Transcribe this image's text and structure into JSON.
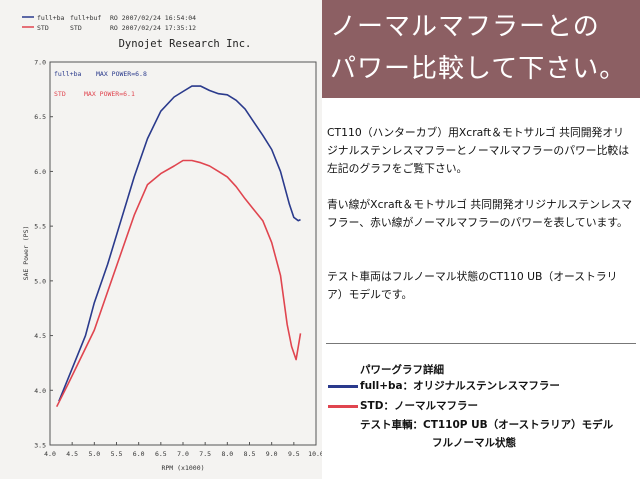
{
  "banner": {
    "line1": "ノーマルマフラーとの",
    "line2": "パワー比較して下さい。"
  },
  "description": {
    "p1": "CT110（ハンターカブ）用Xcraft＆モトサルゴ 共同開発オリジナルステンレスマフラーとノーマルマフラーのパワー比較は左記のグラフをご覧下さい。",
    "p2": "青い線がXcraft＆モトサルゴ 共同開発オリジナルステンレスマフラー、赤い線がノーマルマフラーのパワーを表しています。",
    "p3": "テスト車両はフルノーマル状態のCT110 UB（オーストラリア）モデルです。"
  },
  "legend_block": {
    "title": "パワーグラフ詳細",
    "item_blue": "full+ba：オリジナルステンレスマフラー",
    "item_red": "STD：ノーマルマフラー",
    "test_vehicle_1": "テスト車輌：CT110P UB（オーストラリア）モデル",
    "test_vehicle_2": "フルノーマル状態"
  },
  "chart_header": {
    "row1_a": "full+ba",
    "row1_b": "full+buf",
    "row1_c": "RO  2007/02/24 16:54:04",
    "row2_a": "STD",
    "row2_b": "STD",
    "row2_c": "RO  2007/02/24 17:35:12",
    "company": "Dynojet  Research  Inc."
  },
  "colors": {
    "blue": "#2a3a8c",
    "red": "#e0454f",
    "banner": "#8c5f63"
  },
  "chart_data": {
    "type": "line",
    "title": "Dynojet  Research  Inc.",
    "xlabel": "RPM (x1000)",
    "ylabel": "SAE Power (PS)",
    "xlim": [
      4.0,
      10.0
    ],
    "ylim": [
      3.5,
      7.0
    ],
    "xticks": [
      "4.0",
      "4.5",
      "5.0",
      "5.5",
      "6.0",
      "6.5",
      "7.0",
      "7.5",
      "8.0",
      "8.5",
      "9.0",
      "9.5",
      "10.0"
    ],
    "yticks": [
      "3.5",
      "4.0",
      "4.5",
      "5.0",
      "5.5",
      "6.0",
      "6.5",
      "7.0"
    ],
    "grid": false,
    "annotations": [
      {
        "series": "full+ba",
        "label": "full+ba",
        "text": "MAX POWER=6.8"
      },
      {
        "series": "STD",
        "label": "STD",
        "text": "MAX POWER=6.1"
      }
    ],
    "series": [
      {
        "name": "full+ba",
        "color": "#2a3a8c",
        "x": [
          4.2,
          4.5,
          4.8,
          5.0,
          5.3,
          5.6,
          5.9,
          6.2,
          6.5,
          6.8,
          7.0,
          7.2,
          7.4,
          7.6,
          7.8,
          8.0,
          8.2,
          8.4,
          8.6,
          8.8,
          9.0,
          9.2,
          9.4,
          9.5,
          9.6,
          9.65
        ],
        "y": [
          3.9,
          4.2,
          4.5,
          4.8,
          5.15,
          5.55,
          5.95,
          6.3,
          6.55,
          6.68,
          6.73,
          6.78,
          6.78,
          6.74,
          6.71,
          6.7,
          6.65,
          6.57,
          6.45,
          6.33,
          6.2,
          6.0,
          5.7,
          5.58,
          5.55,
          5.56
        ]
      },
      {
        "name": "STD",
        "color": "#e0454f",
        "x": [
          4.15,
          4.4,
          4.7,
          5.0,
          5.3,
          5.6,
          5.9,
          6.2,
          6.5,
          6.8,
          7.0,
          7.2,
          7.4,
          7.6,
          7.8,
          8.0,
          8.2,
          8.4,
          8.6,
          8.8,
          9.0,
          9.2,
          9.35,
          9.45,
          9.55,
          9.65
        ],
        "y": [
          3.85,
          4.05,
          4.3,
          4.55,
          4.9,
          5.25,
          5.6,
          5.88,
          5.98,
          6.05,
          6.1,
          6.1,
          6.08,
          6.05,
          6.0,
          5.95,
          5.86,
          5.75,
          5.65,
          5.55,
          5.35,
          5.05,
          4.6,
          4.4,
          4.28,
          4.52
        ]
      }
    ]
  }
}
